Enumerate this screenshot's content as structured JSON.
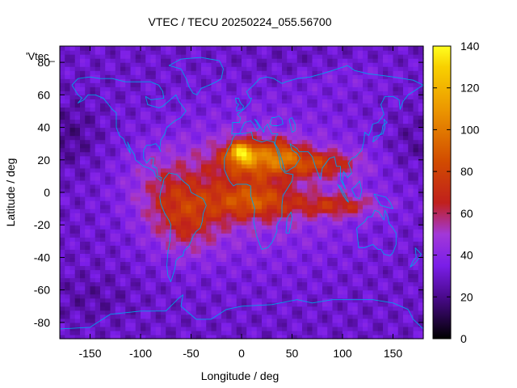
{
  "chart_data": {
    "type": "heatmap",
    "title": "VTEC / TECU 20250224_055.56700",
    "xlabel": "Longitude / deg",
    "ylabel": "Latitude / deg",
    "corner_label": "'Vtec_",
    "xlim": [
      -180,
      180
    ],
    "ylim": [
      -90,
      90
    ],
    "x_ticks": [
      -150,
      -100,
      -50,
      0,
      50,
      100,
      150
    ],
    "y_ticks": [
      -80,
      -60,
      -40,
      -20,
      0,
      20,
      40,
      60,
      80
    ],
    "colorbar": {
      "min": 0,
      "max": 140,
      "ticks": [
        0,
        20,
        40,
        60,
        80,
        100,
        120,
        140
      ],
      "stops": [
        {
          "v": 0,
          "color": "#000000"
        },
        {
          "v": 20,
          "color": "#4a0a8c"
        },
        {
          "v": 35,
          "color": "#7a1ee8"
        },
        {
          "v": 50,
          "color": "#a238d8"
        },
        {
          "v": 65,
          "color": "#c0201c"
        },
        {
          "v": 85,
          "color": "#d24c00"
        },
        {
          "v": 110,
          "color": "#ec9800"
        },
        {
          "v": 130,
          "color": "#f8d000"
        },
        {
          "v": 140,
          "color": "#ffff20"
        }
      ]
    },
    "grid": false,
    "legend": "none",
    "coastline_color": "#00a0e8"
  }
}
